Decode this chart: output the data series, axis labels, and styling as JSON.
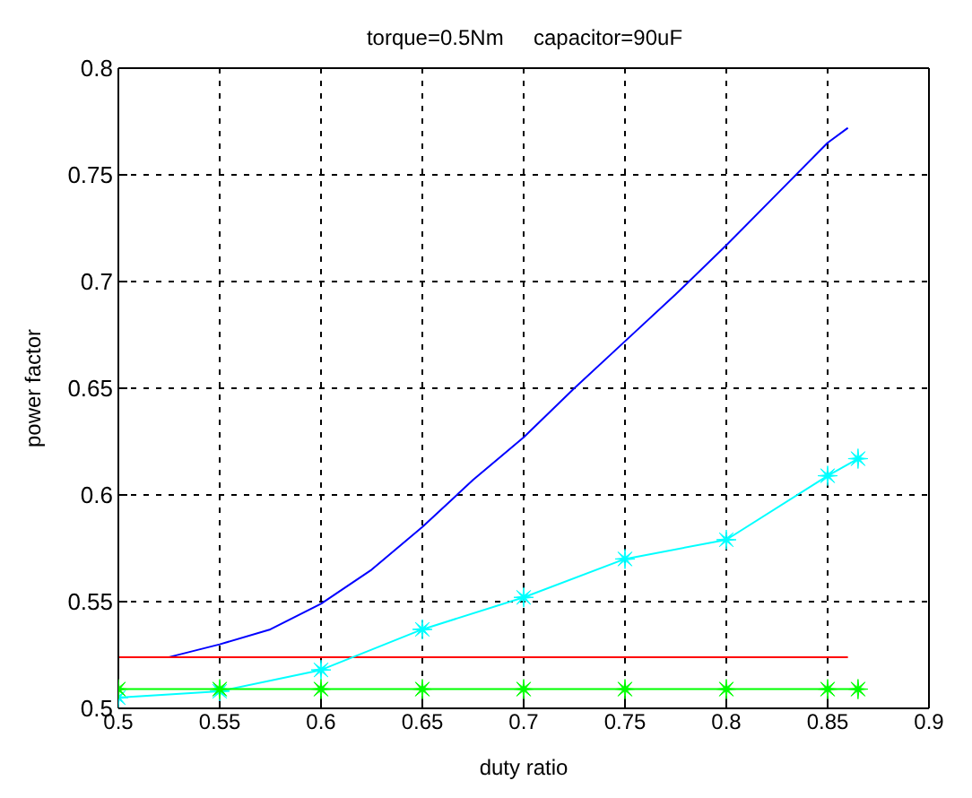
{
  "chart_data": {
    "type": "line",
    "title": "torque=0.5Nm     capacitor=90uF",
    "xlabel": "duty ratio",
    "ylabel": "power factor",
    "xlim": [
      0.5,
      0.9
    ],
    "xticks": [
      0.5,
      0.55,
      0.6,
      0.65,
      0.7,
      0.75,
      0.8,
      0.85,
      0.9
    ],
    "ylim": [
      0.5,
      0.8
    ],
    "yticks": [
      0.5,
      0.55,
      0.6,
      0.65,
      0.7,
      0.75,
      0.8
    ],
    "grid": true,
    "line_style": "solid",
    "legend": false,
    "series": [
      {
        "color": "#0000ff",
        "marker": "none",
        "x": [
          0.525,
          0.55,
          0.575,
          0.6,
          0.625,
          0.65,
          0.675,
          0.7,
          0.725,
          0.75,
          0.775,
          0.8,
          0.825,
          0.85,
          0.86
        ],
        "values": [
          0.524,
          0.53,
          0.537,
          0.549,
          0.565,
          0.585,
          0.607,
          0.627,
          0.65,
          0.672,
          0.694,
          0.717,
          0.741,
          0.765,
          0.772
        ]
      },
      {
        "color": "#ff0000",
        "marker": "none",
        "x": [
          0.5,
          0.86
        ],
        "values": [
          0.524,
          0.524
        ]
      },
      {
        "color": "#00ffff",
        "marker": "star",
        "x": [
          0.5,
          0.55,
          0.6,
          0.65,
          0.7,
          0.75,
          0.8,
          0.85,
          0.865
        ],
        "values": [
          0.505,
          0.508,
          0.518,
          0.537,
          0.552,
          0.57,
          0.579,
          0.609,
          0.617
        ]
      },
      {
        "color": "#00ff00",
        "marker": "star",
        "x": [
          0.5,
          0.55,
          0.6,
          0.65,
          0.7,
          0.75,
          0.8,
          0.85,
          0.865
        ],
        "values": [
          0.509,
          0.509,
          0.509,
          0.509,
          0.509,
          0.509,
          0.509,
          0.509,
          0.509
        ]
      }
    ]
  }
}
